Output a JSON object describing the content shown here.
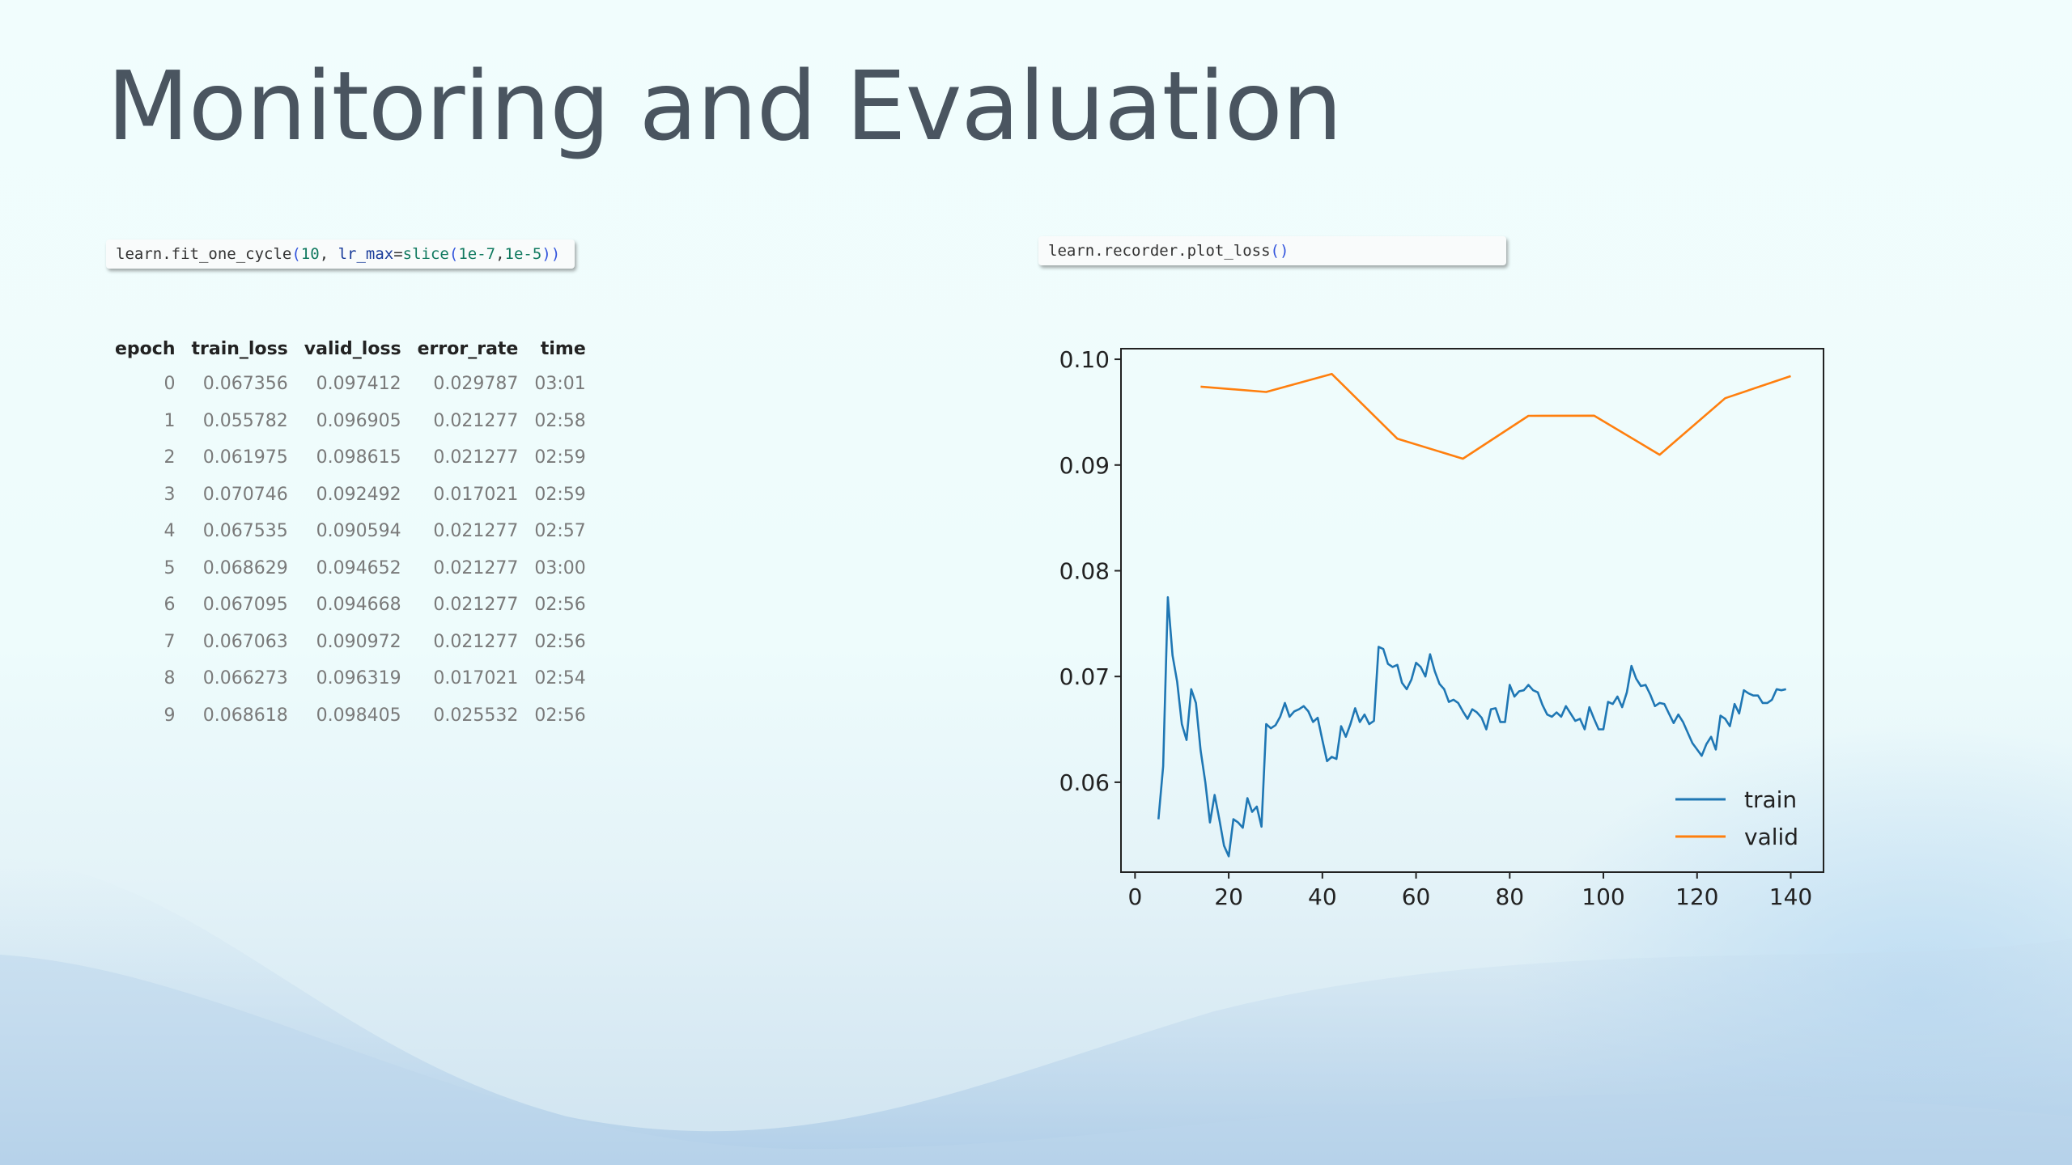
{
  "slide": {
    "title": "Monitoring and Evaluation"
  },
  "code_cells": {
    "fit": {
      "obj": "learn.fit_one_cycle",
      "open": "(",
      "arg1": "10",
      "sep": ", ",
      "kwarg": "lr_max",
      "eq": "=",
      "fn": "slice",
      "open2": "(",
      "a": "1e-7",
      "comma": ",",
      "b": "1e-5",
      "close": "))"
    },
    "plot": {
      "obj": "learn.recorder.plot_loss",
      "parens": "()"
    }
  },
  "table": {
    "headers": [
      "epoch",
      "train_loss",
      "valid_loss",
      "error_rate",
      "time"
    ],
    "rows": [
      [
        "0",
        "0.067356",
        "0.097412",
        "0.029787",
        "03:01"
      ],
      [
        "1",
        "0.055782",
        "0.096905",
        "0.021277",
        "02:58"
      ],
      [
        "2",
        "0.061975",
        "0.098615",
        "0.021277",
        "02:59"
      ],
      [
        "3",
        "0.070746",
        "0.092492",
        "0.017021",
        "02:59"
      ],
      [
        "4",
        "0.067535",
        "0.090594",
        "0.021277",
        "02:57"
      ],
      [
        "5",
        "0.068629",
        "0.094652",
        "0.021277",
        "03:00"
      ],
      [
        "6",
        "0.067095",
        "0.094668",
        "0.021277",
        "02:56"
      ],
      [
        "7",
        "0.067063",
        "0.090972",
        "0.021277",
        "02:56"
      ],
      [
        "8",
        "0.066273",
        "0.096319",
        "0.017021",
        "02:54"
      ],
      [
        "9",
        "0.068618",
        "0.098405",
        "0.025532",
        "02:56"
      ]
    ]
  },
  "chart_data": {
    "type": "line",
    "title": "",
    "xlabel": "",
    "ylabel": "",
    "xlim": [
      -3,
      147
    ],
    "ylim": [
      0.0515,
      0.101
    ],
    "xticks": [
      0,
      20,
      40,
      60,
      80,
      100,
      120,
      140
    ],
    "yticks": [
      0.06,
      0.07,
      0.08,
      0.09,
      0.1
    ],
    "ytick_labels": [
      "0.06",
      "0.07",
      "0.08",
      "0.09",
      "0.10"
    ],
    "grid": false,
    "legend": "lower-right",
    "series": [
      {
        "name": "train",
        "color": "#1f77b4",
        "x_start": 5,
        "values": [
          0.0565,
          0.0615,
          0.0775,
          0.072,
          0.0695,
          0.0655,
          0.064,
          0.0688,
          0.0675,
          0.063,
          0.06,
          0.0562,
          0.0588,
          0.0565,
          0.054,
          0.053,
          0.0565,
          0.0562,
          0.0557,
          0.0585,
          0.0572,
          0.0577,
          0.0558,
          0.0655,
          0.0651,
          0.0654,
          0.0662,
          0.0675,
          0.0662,
          0.0667,
          0.0669,
          0.0672,
          0.0667,
          0.0657,
          0.0661,
          0.064,
          0.062,
          0.0624,
          0.0622,
          0.0653,
          0.0643,
          0.0655,
          0.067,
          0.0657,
          0.0664,
          0.0655,
          0.0658,
          0.0728,
          0.0726,
          0.0712,
          0.0709,
          0.0711,
          0.0694,
          0.0688,
          0.0697,
          0.0713,
          0.0709,
          0.07,
          0.0721,
          0.0705,
          0.0693,
          0.0688,
          0.0676,
          0.0678,
          0.0675,
          0.0667,
          0.066,
          0.0669,
          0.0666,
          0.0661,
          0.065,
          0.0669,
          0.067,
          0.0657,
          0.0657,
          0.0692,
          0.0681,
          0.0686,
          0.0687,
          0.0692,
          0.0687,
          0.0685,
          0.0673,
          0.0664,
          0.0662,
          0.0666,
          0.0662,
          0.0672,
          0.0665,
          0.0658,
          0.066,
          0.065,
          0.0671,
          0.066,
          0.065,
          0.065,
          0.0676,
          0.0674,
          0.0681,
          0.0671,
          0.0685,
          0.071,
          0.0698,
          0.0691,
          0.0692,
          0.0683,
          0.0672,
          0.0675,
          0.0674,
          0.0665,
          0.0656,
          0.0664,
          0.0657,
          0.0647,
          0.0637,
          0.0631,
          0.0625,
          0.0636,
          0.0643,
          0.0631,
          0.0663,
          0.066,
          0.0653,
          0.0674,
          0.0665,
          0.0687,
          0.0684,
          0.0682,
          0.0682,
          0.0675,
          0.0675,
          0.0678,
          0.0688,
          0.0687,
          0.0688
        ]
      },
      {
        "name": "valid",
        "color": "#ff7f0e",
        "x": [
          14,
          28,
          42,
          56,
          70,
          84,
          98,
          112,
          126,
          140
        ],
        "values": [
          0.097412,
          0.096905,
          0.098615,
          0.092492,
          0.090594,
          0.094652,
          0.094668,
          0.090972,
          0.096319,
          0.098405
        ]
      }
    ]
  }
}
